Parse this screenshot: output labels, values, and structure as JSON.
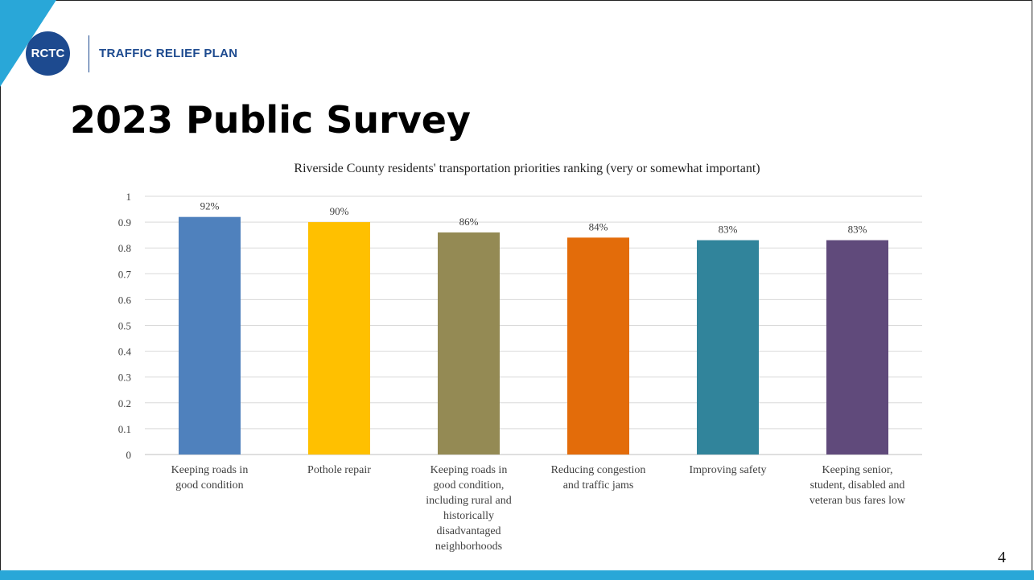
{
  "header": {
    "logo_text": "RCTC",
    "brand_name": "TRAFFIC RELIEF PLAN"
  },
  "slide": {
    "title": "2023 Public Survey",
    "page_number": "4"
  },
  "colors": {
    "accent": "#29a7d8",
    "brand": "#1d4a8f"
  },
  "chart_data": {
    "type": "bar",
    "title": "Riverside County residents' transportation priorities ranking (very or somewhat important)",
    "categories": [
      [
        "Keeping roads in",
        "good condition"
      ],
      [
        "Pothole repair"
      ],
      [
        "Keeping roads in",
        "good condition,",
        "including rural and",
        "historically",
        "disadvantaged",
        "neighborhoods"
      ],
      [
        "Reducing congestion",
        "and traffic jams"
      ],
      [
        "Improving safety"
      ],
      [
        "Keeping senior,",
        "student, disabled and",
        "veteran bus fares low"
      ]
    ],
    "values": [
      0.92,
      0.9,
      0.86,
      0.84,
      0.83,
      0.83
    ],
    "data_labels": [
      "92%",
      "90%",
      "86%",
      "84%",
      "83%",
      "83%"
    ],
    "bar_colors": [
      "#4f81bd",
      "#ffc000",
      "#948a54",
      "#e36c0a",
      "#31849b",
      "#604a7b"
    ],
    "ylim": [
      0,
      1
    ],
    "yticks": [
      "0",
      "0.1",
      "0.2",
      "0.3",
      "0.4",
      "0.5",
      "0.6",
      "0.7",
      "0.8",
      "0.9",
      "1"
    ],
    "grid": true,
    "legend": "none"
  }
}
